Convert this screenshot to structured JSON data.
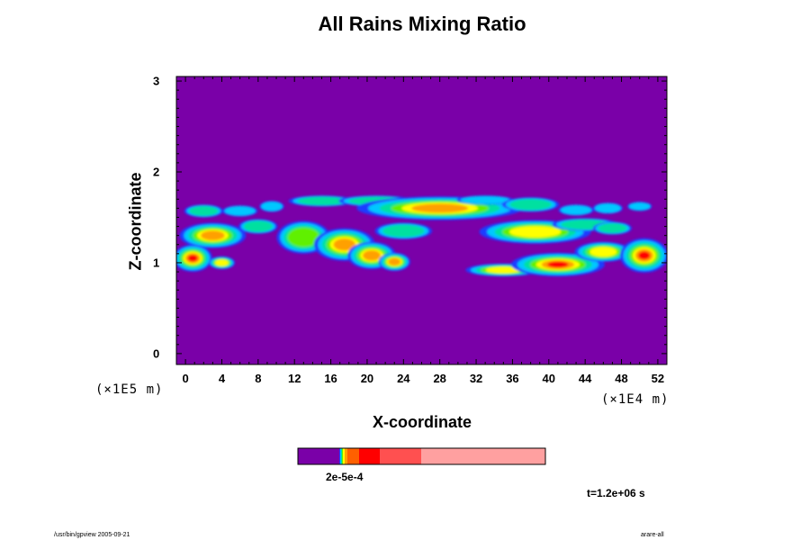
{
  "chart_data": {
    "type": "heatmap",
    "title": "All Rains Mixing Ratio",
    "xlabel": "X-coordinate",
    "ylabel": "Z-coordinate",
    "x_unit": "(×1E4 m)",
    "y_unit": "(×1E5 m)",
    "x_ticks": [
      "0",
      "4",
      "8",
      "12",
      "16",
      "20",
      "24",
      "28",
      "32",
      "36",
      "40",
      "44",
      "48",
      "52"
    ],
    "y_ticks": [
      "0",
      "1",
      "2",
      "3"
    ],
    "xlim": [
      -1,
      53
    ],
    "ylim": [
      -0.12,
      3.05
    ],
    "background_color": "#7a00a8",
    "colorbar": {
      "colors": [
        "#7a00a8",
        "#1e3cff",
        "#00c8ff",
        "#00e0a0",
        "#60f000",
        "#ffff00",
        "#ffa000",
        "#ff6000",
        "#ff0000",
        "#ff5050",
        "#ffa0a0"
      ],
      "label": "2e-5e-4",
      "layout": "horizontal-below"
    },
    "features": [
      {
        "name": "upper-band",
        "z_range": [
          1.5,
          1.75
        ],
        "x_range": [
          0,
          52
        ],
        "peak_x": 28,
        "peak_z": 1.58
      },
      {
        "name": "middle-band-left",
        "z_range": [
          1.0,
          1.45
        ],
        "x_range": [
          0,
          25
        ],
        "peak_x": 22,
        "peak_z": 1.0
      },
      {
        "name": "middle-band-right",
        "z_range": [
          0.8,
          1.45
        ],
        "x_range": [
          31,
          52
        ],
        "peak_x": 40,
        "peak_z": 0.98
      },
      {
        "name": "left-edge-core",
        "z_range": [
          0.9,
          1.2
        ],
        "x_range": [
          -1,
          2.5
        ],
        "peak_x": 0,
        "peak_z": 1.02
      }
    ],
    "time_label": "t=1.2e+06 s"
  },
  "footer": {
    "left": "/usr/bin/gpview 2005-09-21",
    "right": "arare-all"
  }
}
